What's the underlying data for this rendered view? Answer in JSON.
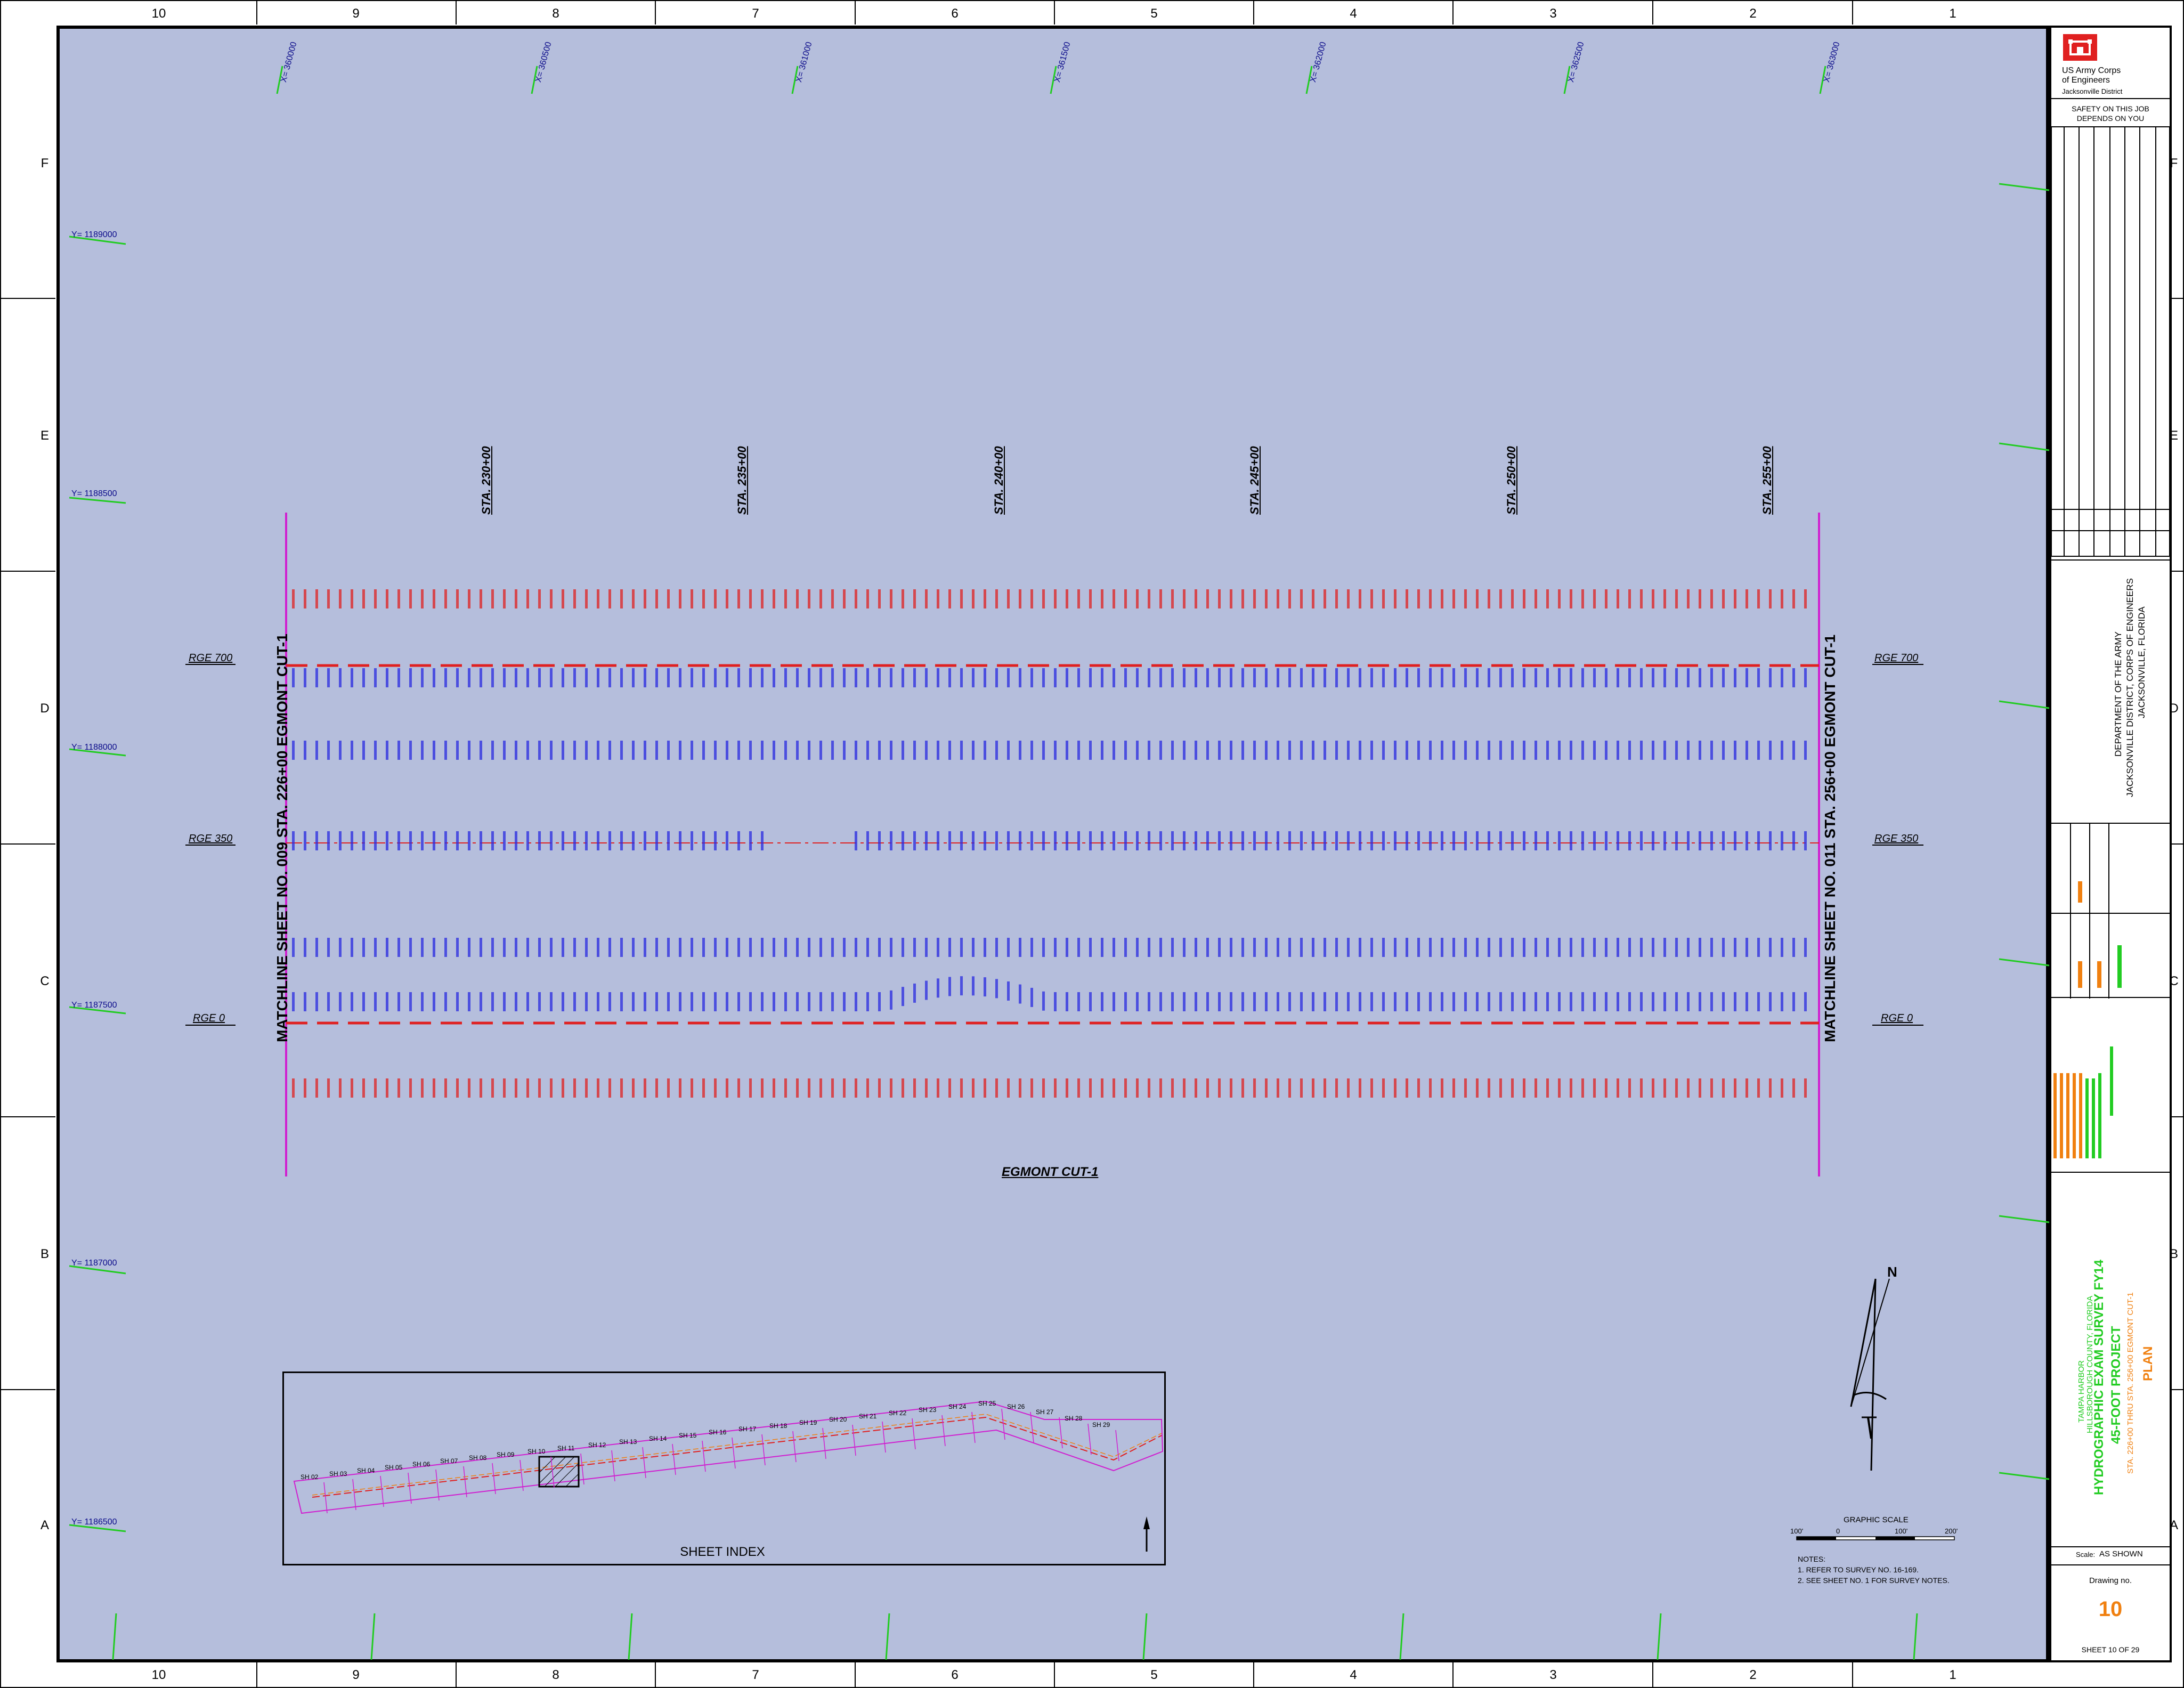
{
  "grid": {
    "numbers": [
      "10",
      "9",
      "8",
      "7",
      "6",
      "5",
      "4",
      "3",
      "2",
      "1"
    ],
    "letters": [
      "F",
      "E",
      "D",
      "C",
      "B",
      "A"
    ]
  },
  "coords": {
    "x": [
      "X= 360000",
      "X= 360500",
      "X= 361000",
      "X= 361500",
      "X= 362000",
      "X= 362500",
      "X= 363000"
    ],
    "y": [
      "Y= 1189000",
      "Y= 1188500",
      "Y= 1188000",
      "Y= 1187500",
      "Y= 1187000",
      "Y= 1186500"
    ]
  },
  "stations": [
    "STA. 230+00",
    "STA. 235+00",
    "STA. 240+00",
    "STA. 245+00",
    "STA. 250+00",
    "STA. 255+00"
  ],
  "matchlines": {
    "left": "MATCHLINE SHEET NO. 009 STA. 226+00 EGMONT CUT-1",
    "right": "MATCHLINE SHEET NO. 011 STA. 256+00 EGMONT CUT-1"
  },
  "ranges": {
    "rge700": "RGE 700",
    "rge350": "RGE 350",
    "rge0": "RGE 0"
  },
  "channel_label": "EGMONT CUT-1",
  "sheet_index": {
    "title": "SHEET INDEX",
    "sheets": [
      "SH 02",
      "SH 03",
      "SH 04",
      "SH 05",
      "SH 06",
      "SH 07",
      "SH 08",
      "SH 09",
      "SH 10",
      "SH 11",
      "SH 12",
      "SH 13",
      "SH 14",
      "SH 15",
      "SH 16",
      "SH 17",
      "SH 18",
      "SH 19",
      "SH 20",
      "SH 21",
      "SH 22",
      "SH 23",
      "SH 24",
      "SH 25",
      "SH 26",
      "SH 27",
      "SH 28",
      "SH 29"
    ]
  },
  "north_arrow": {
    "label": "N"
  },
  "graphic_scale": {
    "title": "GRAPHIC SCALE",
    "ticks": [
      "100'",
      "0",
      "100'",
      "200'"
    ]
  },
  "notes": {
    "title": "NOTES:",
    "items": [
      "1. REFER TO SURVEY NO. 16-169.",
      "2. SEE SHEET NO. 1 FOR SURVEY NOTES."
    ]
  },
  "title_block": {
    "agency_line1": "US Army Corps",
    "agency_line2": "of Engineers",
    "agency_line3": "Jacksonville District",
    "safety_line1": "SAFETY ON THIS JOB",
    "safety_line2": "DEPENDS ON YOU",
    "dept_line1": "DEPARTMENT OF THE ARMY",
    "dept_line2": "JACKSONVILLE DISTRICT, CORPS OF ENGINEERS",
    "dept_line3": "JACKSONVILLE, FLORIDA",
    "project_line1": "TAMPA HARBOR",
    "project_line2": "HILLSBOROUGH COUNTY, FLORIDA",
    "project_line3": "HYDROGRAPHIC EXAM SURVEY FY14",
    "project_line4": "45-FOOT PROJECT",
    "project_line5": "STA. 226+00 THRU STA. 256+00 EGMONT CUT-1",
    "project_line6": "PLAN",
    "scale_label": "Scale:",
    "scale_value": "AS SHOWN",
    "drawing_label": "Drawing no.",
    "drawing_no": "10",
    "sheet_text": "SHEET  10  OF  29"
  },
  "colors": {
    "background": "#b5bedc",
    "red": "#e02020",
    "blue": "#2a2ae0",
    "magenta": "#d020d0",
    "green": "#22cc22",
    "orange": "#f08010"
  }
}
